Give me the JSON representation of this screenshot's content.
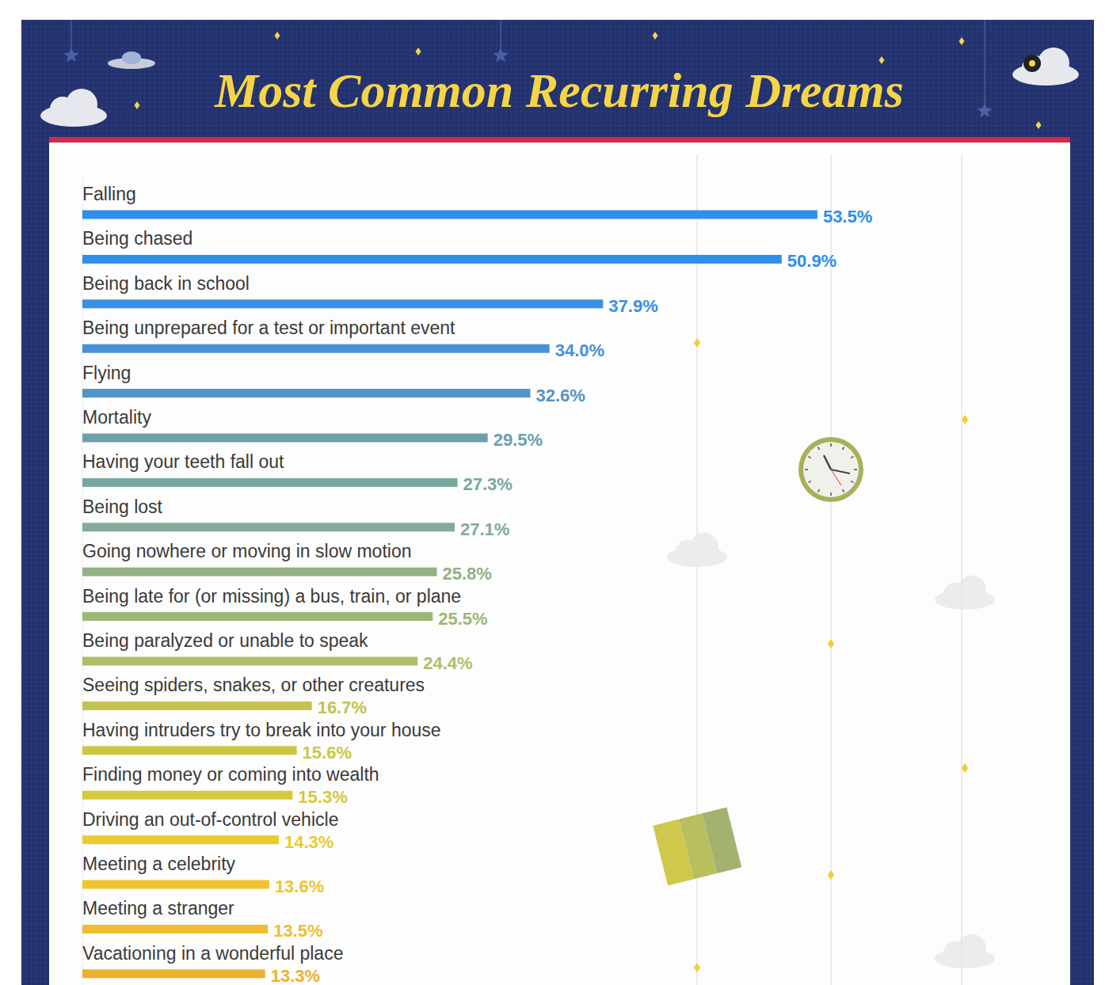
{
  "chart_data": {
    "type": "bar",
    "title": "Most Common Recurring Dreams",
    "orientation": "horizontal",
    "data_labels": true,
    "tick_labels": false,
    "grid": false,
    "xlim": [
      0,
      64
    ],
    "categories": [
      "Falling",
      "Being chased",
      "Being back in school",
      "Being unprepared for a test or important event",
      "Flying",
      "Mortality",
      "Having your teeth fall out",
      "Being lost",
      "Going nowhere or moving in slow motion",
      "Being late for (or missing) a bus, train, or plane",
      "Being paralyzed or unable to speak",
      "Seeing spiders, snakes, or other creatures",
      "Having intruders try to break into your house",
      "Finding money or coming into wealth",
      "Driving an out-of-control vehicle",
      "Meeting a celebrity",
      "Meeting a stranger",
      "Vacationing in a wonderful place"
    ],
    "values": [
      53.5,
      50.9,
      37.9,
      34.0,
      32.6,
      29.5,
      27.3,
      27.1,
      25.8,
      25.5,
      24.4,
      16.7,
      15.6,
      15.3,
      14.3,
      13.6,
      13.5,
      13.3
    ],
    "value_labels": [
      "53.5%",
      "50.9%",
      "37.9%",
      "34.0%",
      "32.6%",
      "29.5%",
      "27.3%",
      "27.1%",
      "25.8%",
      "25.5%",
      "24.4%",
      "16.7%",
      "15.6%",
      "15.3%",
      "14.3%",
      "13.6%",
      "13.5%",
      "13.3%"
    ],
    "colors": [
      "#2f8fea",
      "#2f8fea",
      "#3a90e2",
      "#4691d6",
      "#5394c4",
      "#6aa0aa",
      "#78a79f",
      "#82ab97",
      "#92b184",
      "#9db776",
      "#aebf66",
      "#c3c34f",
      "#cdc643",
      "#d6c83b",
      "#e7cc2d",
      "#eec531",
      "#efbd2f",
      "#eeb030"
    ]
  }
}
